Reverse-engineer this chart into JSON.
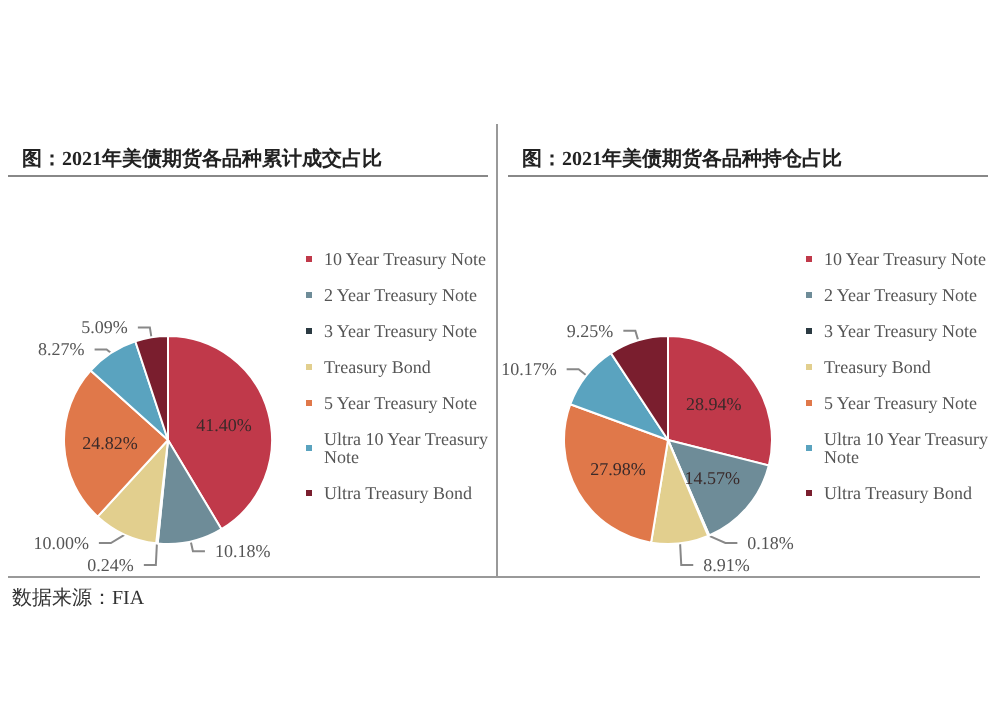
{
  "chart_data": [
    {
      "type": "pie",
      "title": "图：2021年美债期货各品种累计成交占比",
      "categories": [
        "10 Year Treasury Note",
        "2 Year Treasury Note",
        "3 Year Treasury Note",
        "Treasury Bond",
        "5 Year Treasury Note",
        "Ultra 10 Year Treasury Note",
        "Ultra Treasury Bond"
      ],
      "values": [
        41.4,
        10.18,
        0.24,
        10.0,
        24.82,
        8.27,
        5.09
      ],
      "value_labels": [
        "41.40%",
        "10.18%",
        "0.24%",
        "10.00%",
        "24.82%",
        "8.27%",
        "5.09%"
      ],
      "colors": [
        "#c0394a",
        "#6e8c98",
        "#2b3a42",
        "#e2cf8e",
        "#e0784a",
        "#5aa3bf",
        "#7a1e2e"
      ],
      "legend": "right",
      "annotations": [
        "数据来源：FIA"
      ]
    },
    {
      "type": "pie",
      "title": "图：2021年美债期货各品种持仓占比",
      "categories": [
        "10 Year Treasury Note",
        "2 Year Treasury Note",
        "3 Year Treasury Note",
        "Treasury Bond",
        "5 Year Treasury Note",
        "Ultra 10 Year Treasury Note",
        "Ultra Treasury Bond"
      ],
      "values": [
        28.94,
        14.57,
        0.18,
        8.91,
        27.98,
        10.17,
        9.25
      ],
      "value_labels": [
        "28.94%",
        "14.57%",
        "0.18%",
        "8.91%",
        "27.98%",
        "10.17%",
        "9.25%"
      ],
      "colors": [
        "#c0394a",
        "#6e8c98",
        "#2b3a42",
        "#e2cf8e",
        "#e0784a",
        "#5aa3bf",
        "#7a1e2e"
      ],
      "legend": "right"
    }
  ]
}
